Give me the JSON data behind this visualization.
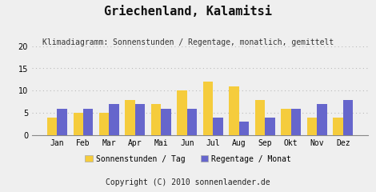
{
  "title": "Griechenland, Kalamitsi",
  "subtitle": "Klimadiagramm: Sonnenstunden / Regentage, monatlich, gemittelt",
  "copyright": "Copyright (C) 2010 sonnenlaender.de",
  "months": [
    "Jan",
    "Feb",
    "Mar",
    "Apr",
    "Mai",
    "Jun",
    "Jul",
    "Aug",
    "Sep",
    "Okt",
    "Nov",
    "Dez"
  ],
  "sonnenstunden": [
    4,
    5,
    5,
    8,
    7,
    10,
    12,
    11,
    8,
    6,
    4,
    4
  ],
  "regentage": [
    6,
    6,
    7,
    7,
    6,
    6,
    4,
    3,
    4,
    6,
    7,
    8
  ],
  "bar_color_sonnen": "#F5CC3C",
  "bar_color_regen": "#6666CC",
  "background_color": "#EFEFEF",
  "plot_bg_color": "#EFEFEF",
  "grid_color": "#BBBBBB",
  "ylim": [
    0,
    20
  ],
  "yticks": [
    0,
    5,
    10,
    15,
    20
  ],
  "legend_sonnen": "Sonnenstunden / Tag",
  "legend_regen": "Regentage / Monat",
  "title_fontsize": 11,
  "subtitle_fontsize": 7,
  "axis_fontsize": 7,
  "copyright_fontsize": 7,
  "copyright_bg": "#AAAAAA"
}
